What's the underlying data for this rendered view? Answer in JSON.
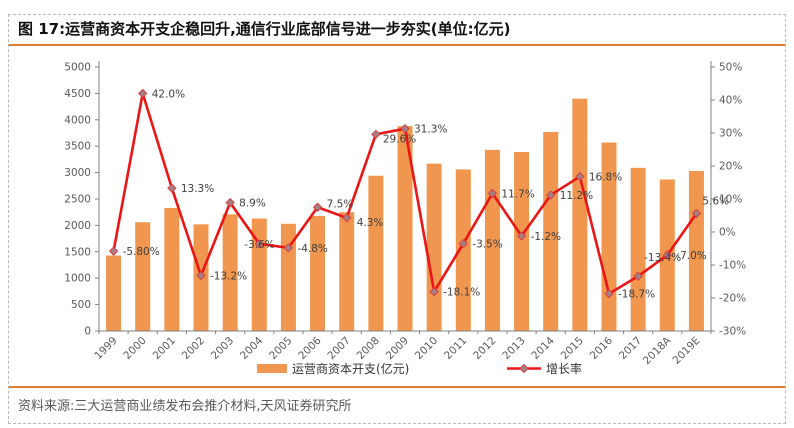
{
  "figure": {
    "title": "图 17:运营商资本开支企稳回升,通信行业底部信号进一步夯实(单位:亿元)",
    "source": "资料来源:三大运营商业绩发布会推介材料,天风证券研究所"
  },
  "chart_data": {
    "type": "bar",
    "subtype": "bar-line-combo",
    "categories": [
      "1999",
      "2000",
      "2001",
      "2002",
      "2003",
      "2004",
      "2005",
      "2006",
      "2007",
      "2008",
      "2009",
      "2010",
      "2011",
      "2012",
      "2013",
      "2014",
      "2015",
      "2016",
      "2017",
      "2018A",
      "2019E"
    ],
    "series": [
      {
        "name": "运营商资本开支(亿元)",
        "type": "bar",
        "axis": "left",
        "values": [
          1430,
          2060,
          2330,
          2020,
          2210,
          2130,
          2030,
          2180,
          2250,
          2940,
          3880,
          3170,
          3060,
          3430,
          3390,
          3770,
          4400,
          3570,
          3090,
          2870,
          3030
        ]
      },
      {
        "name": "增长率",
        "type": "line",
        "axis": "right",
        "values": [
          -5.8,
          42.0,
          13.3,
          -13.2,
          8.9,
          -3.6,
          -4.8,
          7.5,
          4.3,
          29.6,
          31.3,
          -18.1,
          -3.5,
          11.7,
          -1.2,
          11.2,
          16.8,
          -18.7,
          -13.4,
          -7.0,
          5.6
        ],
        "labels": [
          "-5.80%",
          "42.0%",
          "13.3%",
          "-13.2%",
          "8.9%",
          "-3.6%",
          "-4.8%",
          "7.5%",
          "4.3%",
          "29.6%",
          "31.3%",
          "-18.1%",
          "-3.5%",
          "11.7%",
          "-1.2%",
          "11.2%",
          "16.8%",
          "-18.7%",
          "-13.4%",
          "-7.0%",
          "5.6%"
        ]
      }
    ],
    "left_axis": {
      "min": 0,
      "max": 5000,
      "ticks": [
        "0",
        "500",
        "1000",
        "1500",
        "2000",
        "2500",
        "3000",
        "3500",
        "4000",
        "4500",
        "5000"
      ]
    },
    "right_axis": {
      "min": -30,
      "max": 50,
      "ticks": [
        "-30%",
        "-20%",
        "-10%",
        "0%",
        "10%",
        "20%",
        "30%",
        "40%",
        "50%"
      ]
    },
    "legend": [
      "运营商资本开支(亿元)",
      "增长率"
    ],
    "legend_position": "bottom",
    "grid": "off",
    "colors": {
      "bar": "#f0964e",
      "line": "#ea1515",
      "marker_fill": "#a28084",
      "marker_stroke": "#d84040",
      "axis": "#808080",
      "tick_text": "#595959",
      "data_label": "#3f3f3f",
      "accent_rule": "#de7e2e"
    }
  }
}
